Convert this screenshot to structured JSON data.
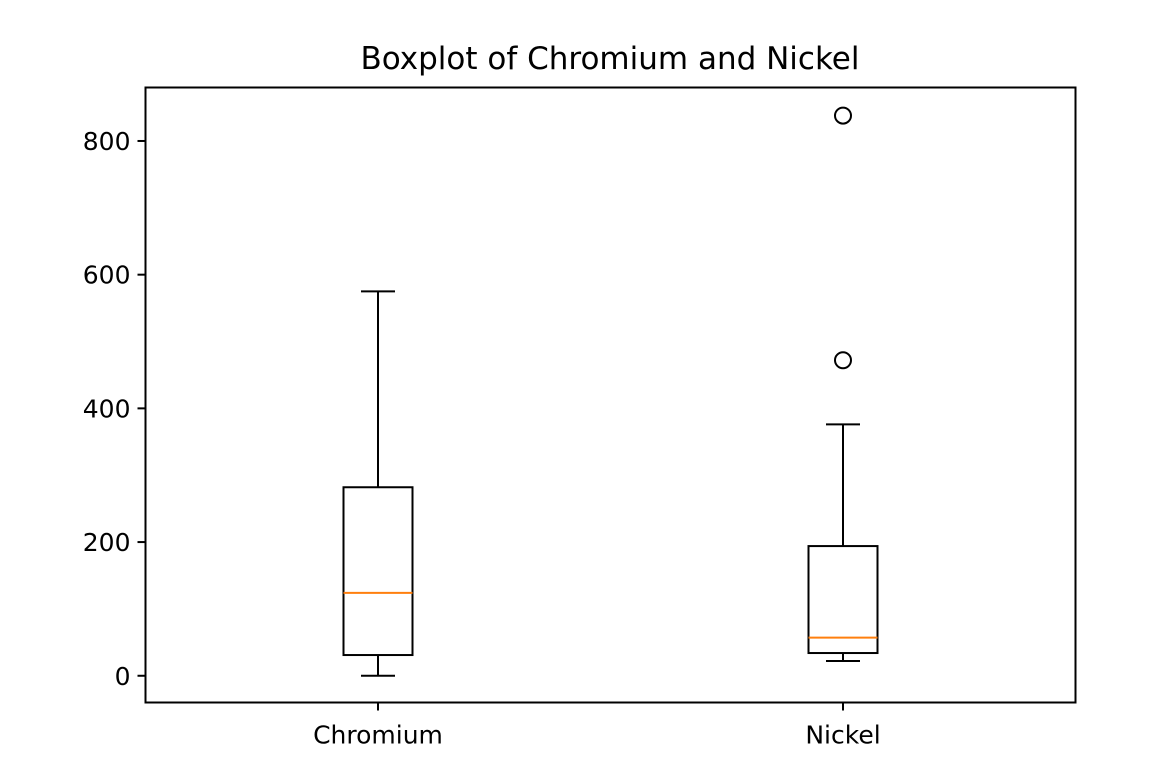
{
  "chart_data": {
    "type": "box",
    "title": "Boxplot of Chromium and Nickel",
    "xlabel": "",
    "ylabel": "",
    "ylim": [
      -40,
      880
    ],
    "yticks": [
      0,
      200,
      400,
      600,
      800
    ],
    "ytick_labels": [
      "0",
      "200",
      "400",
      "600",
      "800"
    ],
    "categories": [
      "Chromium",
      "Nickel"
    ],
    "grid": false,
    "legend": "none",
    "series": [
      {
        "category": "Chromium",
        "whisker_low": 0,
        "q1": 31,
        "median": 124,
        "q3": 282,
        "whisker_high": 575,
        "outliers": []
      },
      {
        "category": "Nickel",
        "whisker_low": 22,
        "q1": 34,
        "median": 57,
        "q3": 194,
        "whisker_high": 376,
        "outliers": [
          472,
          838
        ]
      }
    ],
    "colors": {
      "box": "#000000",
      "median": "#ff7f0e",
      "axes": "#000000"
    }
  }
}
